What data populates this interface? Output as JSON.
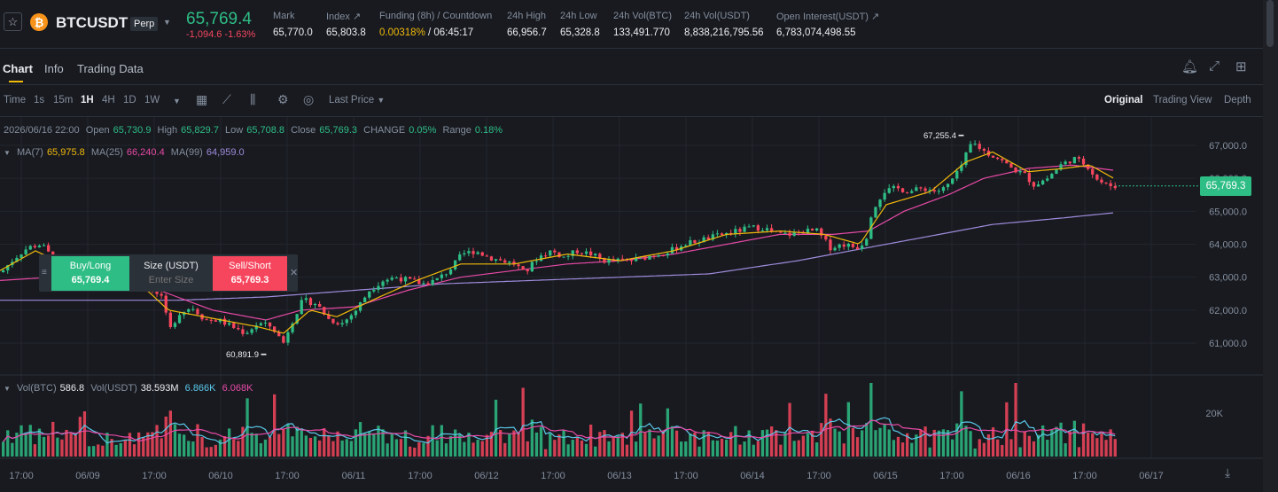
{
  "header": {
    "symbol": "BTCUSDT",
    "badge": "Perp",
    "coin_icon_glyph": "₿",
    "last_price": "65,769.4",
    "change": "-1,094.6 -1.63%",
    "stats": [
      {
        "label": "Mark",
        "value": "65,770.0"
      },
      {
        "label": "Index ↗",
        "value": "65,803.8"
      },
      {
        "label": "Funding (8h) / Countdown",
        "value_rate": "0.00318%",
        "value_countdown": "/ 06:45:17"
      },
      {
        "label": "24h High",
        "value": "66,956.7"
      },
      {
        "label": "24h Low",
        "value": "65,328.8"
      },
      {
        "label": "24h Vol(BTC)",
        "value": "133,491.770"
      },
      {
        "label": "24h Vol(USDT)",
        "value": "8,838,216,795.56"
      },
      {
        "label": "Open Interest(USDT) ↗",
        "value": "6,783,074,498.55"
      }
    ]
  },
  "tabs": [
    "Chart",
    "Info",
    "Trading Data"
  ],
  "toolbar": {
    "intervals": [
      "Time",
      "1s",
      "15m",
      "1H",
      "4H",
      "1D",
      "1W"
    ],
    "active_interval": "1H",
    "price_type": "Last Price",
    "views": [
      "Original",
      "Trading View",
      "Depth"
    ],
    "active_view": "Original"
  },
  "legend": {
    "date": "2026/06/16 22:00",
    "open_label": "Open",
    "open": "65,730.9",
    "high_label": "High",
    "high": "65,829.7",
    "low_label": "Low",
    "low": "65,708.8",
    "close_label": "Close",
    "close": "65,769.3",
    "change_label": "CHANGE",
    "change": "0.05%",
    "range_label": "Range",
    "range": "0.18%",
    "ma7_label": "MA(7)",
    "ma7": "65,975.8",
    "ma25_label": "MA(25)",
    "ma25": "66,240.4",
    "ma99_label": "MA(99)",
    "ma99": "64,959.0"
  },
  "volume_legend": {
    "vol_btc_label": "Vol(BTC)",
    "vol_btc": "586.8",
    "vol_usdt_label": "Vol(USDT)",
    "vol_usdt": "38.593M",
    "v1": "6.866K",
    "v2": "6.068K"
  },
  "trade_widget": {
    "buy_label": "Buy/Long",
    "buy_price": "65,769.4",
    "size_label": "Size (USDT)",
    "size_placeholder": "Enter Size",
    "sell_label": "Sell/Short",
    "sell_price": "65,769.3"
  },
  "current_price_tag": "65,769.3",
  "annotations": {
    "high": "67,255.4",
    "low": "60,891.9"
  },
  "colors": {
    "up": "#2ebd85",
    "down": "#f6465d",
    "ma7": "#f0b90b",
    "ma25": "#e84aa6",
    "ma99": "#9f8bdb",
    "vol_ma": "#5ac8e8"
  },
  "chart_data": {
    "type": "candlestick",
    "y_ticks": [
      "67,000.0",
      "66,000.0",
      "65,000.0",
      "64,000.0",
      "63,000.0",
      "62,000.0",
      "61,000.0"
    ],
    "y_tick_values": [
      67000,
      66000,
      65000,
      64000,
      63000,
      62000,
      61000
    ],
    "volume_ticks": [
      "20K"
    ],
    "x_ticks": [
      "17:00",
      "06/09",
      "17:00",
      "06/10",
      "17:00",
      "06/11",
      "17:00",
      "06/12",
      "17:00",
      "06/13",
      "17:00",
      "06/14",
      "17:00",
      "06/15",
      "17:00",
      "06/16",
      "17:00",
      "06/17"
    ],
    "price_path": [
      [
        0,
        63150
      ],
      [
        10,
        63450
      ],
      [
        20,
        63700
      ],
      [
        30,
        63900
      ],
      [
        45,
        64000
      ],
      [
        60,
        63500
      ],
      [
        80,
        63200
      ],
      [
        100,
        62900
      ],
      [
        120,
        63000
      ],
      [
        140,
        63100
      ],
      [
        160,
        62800
      ],
      [
        180,
        62400
      ],
      [
        190,
        61400
      ],
      [
        200,
        61900
      ],
      [
        215,
        62100
      ],
      [
        230,
        61700
      ],
      [
        245,
        61700
      ],
      [
        260,
        61500
      ],
      [
        275,
        61300
      ],
      [
        290,
        61600
      ],
      [
        305,
        61500
      ],
      [
        318,
        61000
      ],
      [
        325,
        61500
      ],
      [
        340,
        62300
      ],
      [
        355,
        62200
      ],
      [
        370,
        61700
      ],
      [
        385,
        61600
      ],
      [
        400,
        62000
      ],
      [
        415,
        62600
      ],
      [
        430,
        62900
      ],
      [
        445,
        63000
      ],
      [
        460,
        62900
      ],
      [
        475,
        62800
      ],
      [
        490,
        62900
      ],
      [
        505,
        63200
      ],
      [
        520,
        63700
      ],
      [
        535,
        63800
      ],
      [
        550,
        63600
      ],
      [
        565,
        63500
      ],
      [
        580,
        63400
      ],
      [
        590,
        63100
      ],
      [
        605,
        63600
      ],
      [
        620,
        63800
      ],
      [
        635,
        63600
      ],
      [
        650,
        63800
      ],
      [
        665,
        63700
      ],
      [
        680,
        63500
      ],
      [
        695,
        63500
      ],
      [
        710,
        63500
      ],
      [
        725,
        63600
      ],
      [
        740,
        63700
      ],
      [
        755,
        63800
      ],
      [
        770,
        64000
      ],
      [
        785,
        64100
      ],
      [
        800,
        64200
      ],
      [
        815,
        64300
      ],
      [
        830,
        64400
      ],
      [
        845,
        64500
      ],
      [
        860,
        64500
      ],
      [
        875,
        64300
      ],
      [
        890,
        64300
      ],
      [
        905,
        64400
      ],
      [
        920,
        64400
      ],
      [
        935,
        63900
      ],
      [
        950,
        64000
      ],
      [
        965,
        63900
      ],
      [
        975,
        64100
      ],
      [
        982,
        65000
      ],
      [
        995,
        65600
      ],
      [
        1010,
        65700
      ],
      [
        1025,
        65600
      ],
      [
        1040,
        65700
      ],
      [
        1055,
        65600
      ],
      [
        1065,
        65700
      ],
      [
        1080,
        66200
      ],
      [
        1095,
        67100
      ],
      [
        1110,
        66800
      ],
      [
        1125,
        66600
      ],
      [
        1140,
        66300
      ],
      [
        1155,
        66100
      ],
      [
        1165,
        65800
      ],
      [
        1180,
        66000
      ],
      [
        1195,
        66400
      ],
      [
        1210,
        66600
      ],
      [
        1225,
        66400
      ],
      [
        1235,
        66000
      ],
      [
        1245,
        65800
      ],
      [
        1258,
        65760
      ]
    ],
    "ma7_path": [
      [
        0,
        63200
      ],
      [
        40,
        63800
      ],
      [
        80,
        63300
      ],
      [
        150,
        63000
      ],
      [
        190,
        62000
      ],
      [
        230,
        61800
      ],
      [
        290,
        61500
      ],
      [
        320,
        61300
      ],
      [
        350,
        62000
      ],
      [
        380,
        61800
      ],
      [
        420,
        62300
      ],
      [
        470,
        62900
      ],
      [
        520,
        63400
      ],
      [
        580,
        63400
      ],
      [
        640,
        63700
      ],
      [
        700,
        63500
      ],
      [
        760,
        63800
      ],
      [
        820,
        64300
      ],
      [
        880,
        64400
      ],
      [
        930,
        64300
      ],
      [
        970,
        64000
      ],
      [
        1000,
        65200
      ],
      [
        1050,
        65600
      ],
      [
        1090,
        66500
      ],
      [
        1120,
        66800
      ],
      [
        1160,
        66200
      ],
      [
        1200,
        66300
      ],
      [
        1230,
        66400
      ],
      [
        1258,
        65980
      ]
    ],
    "ma25_path": [
      [
        0,
        62900
      ],
      [
        60,
        63000
      ],
      [
        120,
        63100
      ],
      [
        180,
        62600
      ],
      [
        240,
        62000
      ],
      [
        300,
        61700
      ],
      [
        340,
        62000
      ],
      [
        400,
        62100
      ],
      [
        460,
        62600
      ],
      [
        520,
        63000
      ],
      [
        580,
        63200
      ],
      [
        640,
        63400
      ],
      [
        700,
        63500
      ],
      [
        760,
        63700
      ],
      [
        820,
        64000
      ],
      [
        880,
        64300
      ],
      [
        940,
        64300
      ],
      [
        980,
        64400
      ],
      [
        1020,
        65000
      ],
      [
        1070,
        65500
      ],
      [
        1110,
        66000
      ],
      [
        1160,
        66300
      ],
      [
        1210,
        66400
      ],
      [
        1258,
        66240
      ]
    ],
    "ma99_path": [
      [
        0,
        62300
      ],
      [
        100,
        62300
      ],
      [
        200,
        62300
      ],
      [
        300,
        62400
      ],
      [
        400,
        62600
      ],
      [
        500,
        62800
      ],
      [
        600,
        62900
      ],
      [
        700,
        63000
      ],
      [
        800,
        63100
      ],
      [
        900,
        63500
      ],
      [
        960,
        63800
      ],
      [
        1000,
        64000
      ],
      [
        1060,
        64300
      ],
      [
        1120,
        64600
      ],
      [
        1200,
        64800
      ],
      [
        1258,
        64959
      ]
    ]
  }
}
